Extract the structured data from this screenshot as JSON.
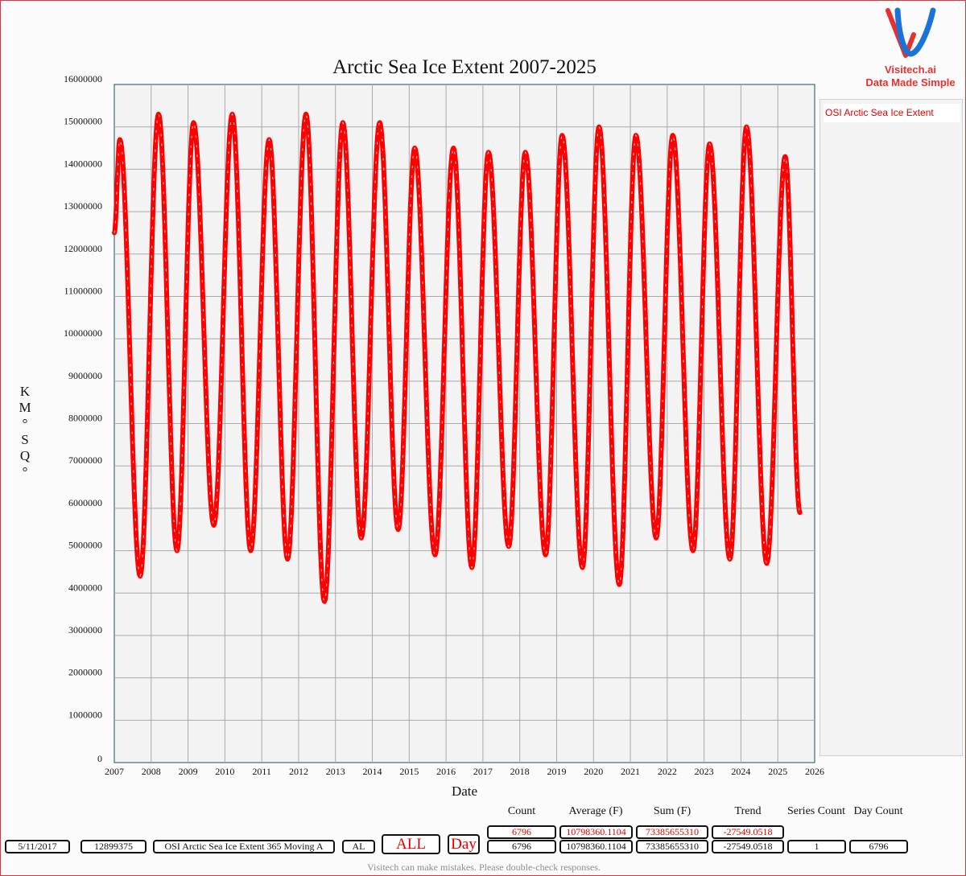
{
  "branding": {
    "name": "Visitech.ai",
    "tagline": "Data Made Simple",
    "colors": {
      "red": "#e8312f",
      "blue": "#1a73d9"
    }
  },
  "chart_data": {
    "type": "line",
    "title": "Arctic Sea Ice Extent 2007-2025",
    "xlabel": "Date",
    "ylabel": "KM°SQ°",
    "ylabel_glyphs": [
      "K",
      "M",
      "°",
      "S",
      "Q",
      "°"
    ],
    "xlim": [
      2007,
      2026
    ],
    "ylim": [
      0,
      16000000
    ],
    "x_ticks": [
      "2007",
      "2008",
      "2009",
      "2010",
      "2011",
      "2012",
      "2013",
      "2014",
      "2015",
      "2016",
      "2017",
      "2018",
      "2019",
      "2020",
      "2021",
      "2022",
      "2023",
      "2024",
      "2025",
      "2026"
    ],
    "y_ticks": [
      "0",
      "1000000",
      "2000000",
      "3000000",
      "4000000",
      "5000000",
      "6000000",
      "7000000",
      "8000000",
      "9000000",
      "10000000",
      "11000000",
      "12000000",
      "13000000",
      "14000000",
      "15000000",
      "16000000"
    ],
    "grid": true,
    "legend_position": "right",
    "series": [
      {
        "name": "OSI Arctic Sea Ice Extent",
        "color": "#ff0000",
        "x": [
          2007.0,
          2007.15,
          2007.7,
          2008.2,
          2008.7,
          2009.15,
          2009.7,
          2010.2,
          2010.7,
          2011.2,
          2011.7,
          2012.2,
          2012.7,
          2013.2,
          2013.7,
          2014.2,
          2014.7,
          2015.15,
          2015.7,
          2016.2,
          2016.7,
          2017.15,
          2017.7,
          2018.15,
          2018.7,
          2019.15,
          2019.7,
          2020.15,
          2020.7,
          2021.15,
          2021.7,
          2022.15,
          2022.7,
          2023.15,
          2023.7,
          2024.15,
          2024.7,
          2025.2,
          2025.6
        ],
        "y": [
          12500000,
          14700000,
          4400000,
          15300000,
          5000000,
          15100000,
          5600000,
          15300000,
          5000000,
          14700000,
          4800000,
          15300000,
          3800000,
          15100000,
          5300000,
          15100000,
          5500000,
          14500000,
          4900000,
          14500000,
          4600000,
          14400000,
          5100000,
          14400000,
          4900000,
          14800000,
          4600000,
          15000000,
          4200000,
          14800000,
          5300000,
          14800000,
          5000000,
          14600000,
          4800000,
          15000000,
          4700000,
          14300000,
          5900000
        ]
      }
    ]
  },
  "legend": {
    "items": [
      "OSI Arctic Sea Ice Extent"
    ]
  },
  "stats": {
    "headers": [
      "Count",
      "Average (F)",
      "Sum (F)",
      "Trend",
      "Series Count",
      "Day Count"
    ],
    "row_red": [
      "6796",
      "10798360.1104",
      "73385655310",
      "-27549.0518"
    ],
    "row_black": [
      "6796",
      "10798360.1104",
      "73385655310",
      "-27549.0518",
      "1",
      "6796"
    ]
  },
  "controls": {
    "date": "5/11/2017",
    "value": "12899375",
    "series_name": "OSI Arctic Sea Ice Extent 365 Moving A",
    "region": "AL",
    "range_button": "ALL",
    "period_button": "Day"
  },
  "disclaimer": "Visitech can make mistakes. Please double-check responses."
}
